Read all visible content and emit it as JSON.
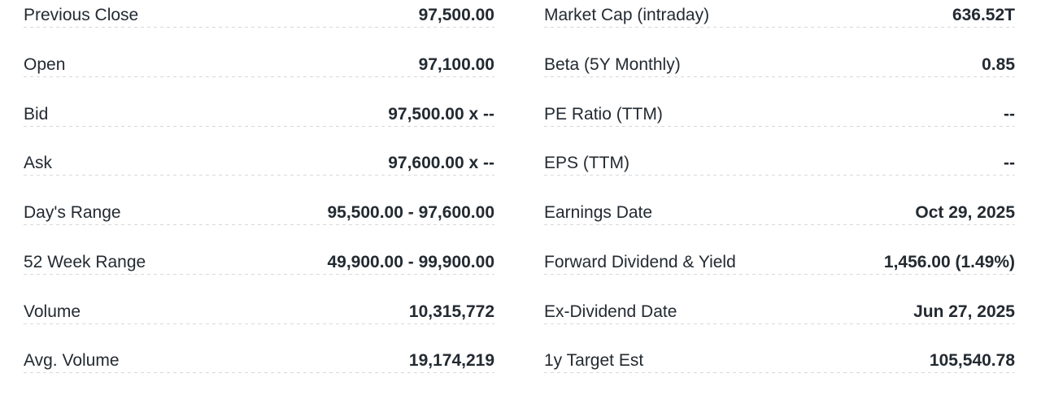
{
  "summary": {
    "left": [
      {
        "label": "Previous Close",
        "value": "97,500.00"
      },
      {
        "label": "Open",
        "value": "97,100.00"
      },
      {
        "label": "Bid",
        "value": "97,500.00 x --"
      },
      {
        "label": "Ask",
        "value": "97,600.00 x --"
      },
      {
        "label": "Day's Range",
        "value": "95,500.00 - 97,600.00"
      },
      {
        "label": "52 Week Range",
        "value": "49,900.00 - 99,900.00"
      },
      {
        "label": "Volume",
        "value": "10,315,772"
      },
      {
        "label": "Avg. Volume",
        "value": "19,174,219"
      }
    ],
    "right": [
      {
        "label": "Market Cap (intraday)",
        "value": "636.52T"
      },
      {
        "label": "Beta (5Y Monthly)",
        "value": "0.85"
      },
      {
        "label": "PE Ratio (TTM)",
        "value": "--"
      },
      {
        "label": "EPS (TTM)",
        "value": "--"
      },
      {
        "label": "Earnings Date",
        "value": "Oct 29, 2025"
      },
      {
        "label": "Forward Dividend & Yield",
        "value": "1,456.00 (1.49%)"
      },
      {
        "label": "Ex-Dividend Date",
        "value": "Jun 27, 2025"
      },
      {
        "label": "1y Target Est",
        "value": "105,540.78"
      }
    ]
  },
  "colors": {
    "text": "#232a31",
    "divider": "#d6d9dc",
    "background": "#ffffff"
  }
}
